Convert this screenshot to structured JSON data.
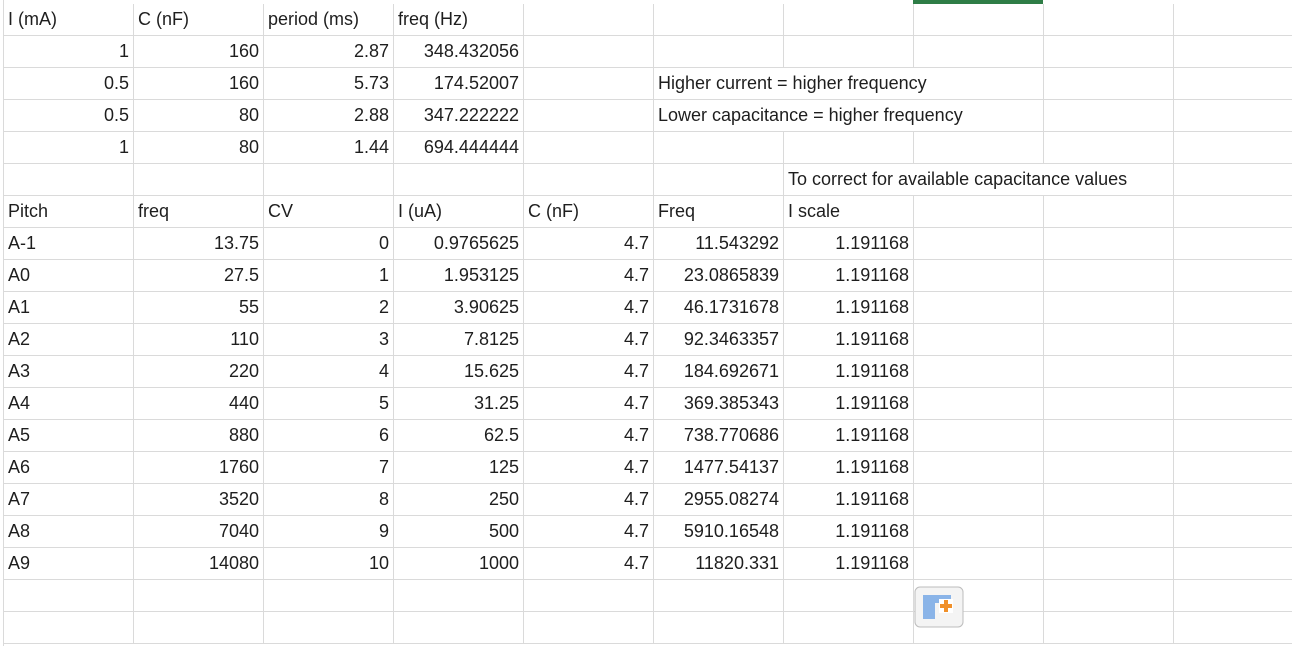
{
  "rows": [
    [
      "I (mA)",
      "C (nF)",
      "period (ms)",
      "freq (Hz)",
      null,
      null,
      null,
      null,
      null,
      null
    ],
    [
      "1",
      "160",
      "2.87",
      "348.432056",
      null,
      null,
      null,
      null,
      null,
      null
    ],
    [
      "0.5",
      "160",
      "5.73",
      "174.52007",
      null,
      "Higher current = higher frequency",
      null,
      null,
      null,
      null
    ],
    [
      "0.5",
      "80",
      "2.88",
      "347.222222",
      null,
      "Lower capacitance = higher frequency",
      null,
      null,
      null,
      null
    ],
    [
      "1",
      "80",
      "1.44",
      "694.444444",
      null,
      null,
      null,
      null,
      null,
      null
    ],
    [
      null,
      null,
      null,
      null,
      null,
      null,
      "To correct for available capacitance values",
      null,
      null,
      null
    ],
    [
      "Pitch",
      "freq",
      "CV",
      "I (uA)",
      "C (nF)",
      "Freq",
      "I scale",
      null,
      null,
      null
    ],
    [
      "A-1",
      "13.75",
      "0",
      "0.9765625",
      "4.7",
      "11.543292",
      "1.191168",
      null,
      null,
      null
    ],
    [
      "A0",
      "27.5",
      "1",
      "1.953125",
      "4.7",
      "23.0865839",
      "1.191168",
      null,
      null,
      null
    ],
    [
      "A1",
      "55",
      "2",
      "3.90625",
      "4.7",
      "46.1731678",
      "1.191168",
      null,
      null,
      null
    ],
    [
      "A2",
      "110",
      "3",
      "7.8125",
      "4.7",
      "92.3463357",
      "1.191168",
      null,
      null,
      null
    ],
    [
      "A3",
      "220",
      "4",
      "15.625",
      "4.7",
      "184.692671",
      "1.191168",
      null,
      null,
      null
    ],
    [
      "A4",
      "440",
      "5",
      "31.25",
      "4.7",
      "369.385343",
      "1.191168",
      null,
      null,
      null
    ],
    [
      "A5",
      "880",
      "6",
      "62.5",
      "4.7",
      "738.770686",
      "1.191168",
      null,
      null,
      null
    ],
    [
      "A6",
      "1760",
      "7",
      "125",
      "4.7",
      "1477.54137",
      "1.191168",
      null,
      null,
      null
    ],
    [
      "A7",
      "3520",
      "8",
      "250",
      "4.7",
      "2955.08274",
      "1.191168",
      null,
      null,
      null
    ],
    [
      "A8",
      "7040",
      "9",
      "500",
      "4.7",
      "5910.16548",
      "1.191168",
      null,
      null,
      null
    ],
    [
      "A9",
      "14080",
      "10",
      "1000",
      "4.7",
      "11820.331",
      "1.191168",
      null,
      null,
      null
    ],
    [
      null,
      null,
      null,
      null,
      null,
      null,
      null,
      null,
      null,
      null
    ],
    [
      null,
      null,
      null,
      null,
      null,
      null,
      null,
      null,
      null,
      null
    ]
  ]
}
